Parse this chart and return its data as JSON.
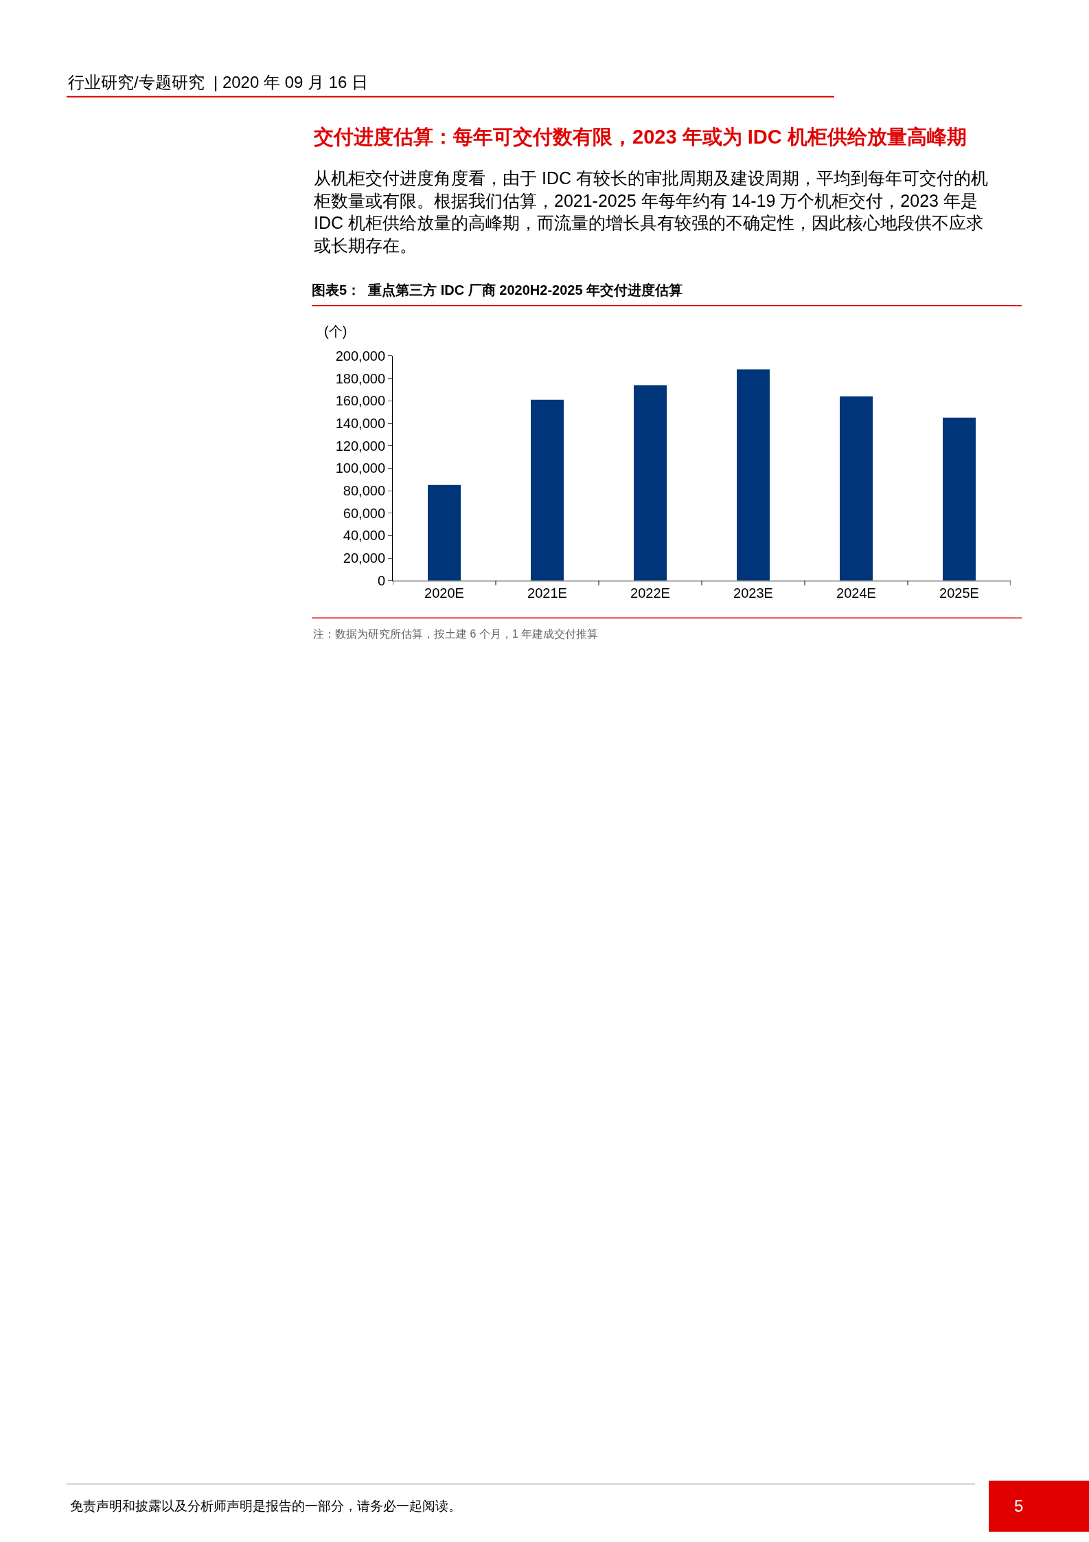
{
  "chart_data": {
    "type": "bar",
    "title": "图表5：  重点第三方 IDC 厂商 2020H2-2025 年交付进度估算",
    "ylabel": "(个)",
    "categories": [
      "2020E",
      "2021E",
      "2022E",
      "2023E",
      "2024E",
      "2025E"
    ],
    "values": [
      85000,
      161000,
      174000,
      188000,
      164000,
      145000
    ],
    "color": "#003679",
    "ylim": [
      0,
      200000
    ],
    "yticks": [
      {
        "value": 0,
        "label": "0"
      },
      {
        "value": 20000,
        "label": "20,000"
      },
      {
        "value": 40000,
        "label": "40,000"
      },
      {
        "value": 60000,
        "label": "60,000"
      },
      {
        "value": 80000,
        "label": "80,000"
      },
      {
        "value": 100000,
        "label": "100,000"
      },
      {
        "value": 120000,
        "label": "120,000"
      },
      {
        "value": 140000,
        "label": "140,000"
      },
      {
        "value": 160000,
        "label": "160,000"
      },
      {
        "value": 180000,
        "label": "180,000"
      },
      {
        "value": 200000,
        "label": "200,000"
      }
    ],
    "legend": false,
    "annotations": [
      "行业研究/专题研究  | 2020 年 09 月 16 日",
      "交付进度估算：每年可交付数有限，2023 年或为 IDC 机柜供给放量高峰期",
      "从机柜交付进度角度看，由于 IDC 有较长的审批周期及建设周期，平均到每年可交付的机柜数量或有限。根据我们估算，2021-2025 年每年约有 14-19 万个机柜交付，2023 年是IDC 机柜供给放量的高峰期，而流量的增长具有较强的不确定性，因此核心地段供不应求或长期存在。",
      "注：数据为研究所估算，按土建 6 个月，1 年建成交付推算",
      "免责声明和披露以及分析师声明是报告的一部分，请务必一起阅读。",
      "5"
    ]
  }
}
